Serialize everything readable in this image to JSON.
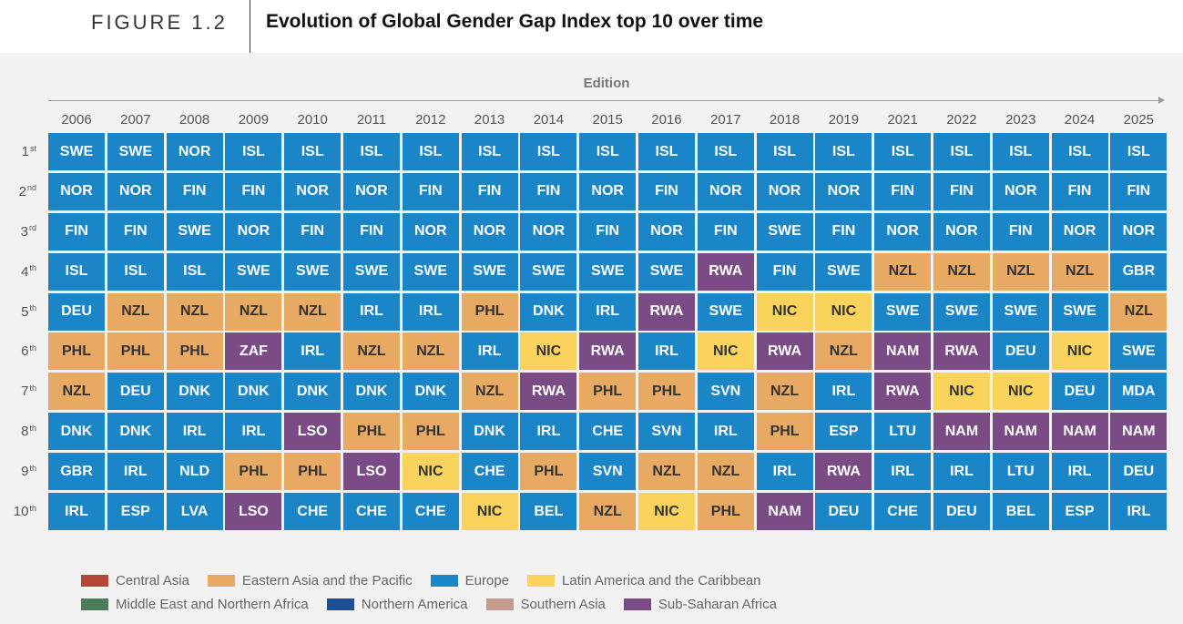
{
  "figure": {
    "label": "FIGURE 1.2",
    "title": "Evolution of Global Gender Gap Index top 10 over time"
  },
  "chart_data": {
    "type": "table",
    "xlabel": "Edition",
    "years": [
      "2006",
      "2007",
      "2008",
      "2009",
      "2010",
      "2011",
      "2012",
      "2013",
      "2014",
      "2015",
      "2016",
      "2017",
      "2018",
      "2019",
      "2021",
      "2022",
      "2023",
      "2024",
      "2025"
    ],
    "ranks": [
      {
        "num": "1",
        "suffix": "st"
      },
      {
        "num": "2",
        "suffix": "nd"
      },
      {
        "num": "3",
        "suffix": "rd"
      },
      {
        "num": "4",
        "suffix": "th"
      },
      {
        "num": "5",
        "suffix": "th"
      },
      {
        "num": "6",
        "suffix": "th"
      },
      {
        "num": "7",
        "suffix": "th"
      },
      {
        "num": "8",
        "suffix": "th"
      },
      {
        "num": "9",
        "suffix": "th"
      },
      {
        "num": "10",
        "suffix": "th"
      }
    ],
    "region_colors": {
      "central_asia": "#b5473a",
      "east_asia_pacific": "#e8a962",
      "europe": "#1a86c7",
      "latin_america": "#fad35c",
      "mena": "#4a7c59",
      "north_america": "#1d4f91",
      "south_asia": "#c49a8f",
      "ssa": "#7b4b85"
    },
    "cells": [
      [
        {
          "c": "SWE",
          "r": "europe"
        },
        {
          "c": "SWE",
          "r": "europe"
        },
        {
          "c": "NOR",
          "r": "europe"
        },
        {
          "c": "ISL",
          "r": "europe"
        },
        {
          "c": "ISL",
          "r": "europe"
        },
        {
          "c": "ISL",
          "r": "europe"
        },
        {
          "c": "ISL",
          "r": "europe"
        },
        {
          "c": "ISL",
          "r": "europe"
        },
        {
          "c": "ISL",
          "r": "europe"
        },
        {
          "c": "ISL",
          "r": "europe"
        },
        {
          "c": "ISL",
          "r": "europe"
        },
        {
          "c": "ISL",
          "r": "europe"
        },
        {
          "c": "ISL",
          "r": "europe"
        },
        {
          "c": "ISL",
          "r": "europe"
        },
        {
          "c": "ISL",
          "r": "europe"
        },
        {
          "c": "ISL",
          "r": "europe"
        },
        {
          "c": "ISL",
          "r": "europe"
        },
        {
          "c": "ISL",
          "r": "europe"
        },
        {
          "c": "ISL",
          "r": "europe"
        }
      ],
      [
        {
          "c": "NOR",
          "r": "europe"
        },
        {
          "c": "NOR",
          "r": "europe"
        },
        {
          "c": "FIN",
          "r": "europe"
        },
        {
          "c": "FIN",
          "r": "europe"
        },
        {
          "c": "NOR",
          "r": "europe"
        },
        {
          "c": "NOR",
          "r": "europe"
        },
        {
          "c": "FIN",
          "r": "europe"
        },
        {
          "c": "FIN",
          "r": "europe"
        },
        {
          "c": "FIN",
          "r": "europe"
        },
        {
          "c": "NOR",
          "r": "europe"
        },
        {
          "c": "FIN",
          "r": "europe"
        },
        {
          "c": "NOR",
          "r": "europe"
        },
        {
          "c": "NOR",
          "r": "europe"
        },
        {
          "c": "NOR",
          "r": "europe"
        },
        {
          "c": "FIN",
          "r": "europe"
        },
        {
          "c": "FIN",
          "r": "europe"
        },
        {
          "c": "NOR",
          "r": "europe"
        },
        {
          "c": "FIN",
          "r": "europe"
        },
        {
          "c": "FIN",
          "r": "europe"
        }
      ],
      [
        {
          "c": "FIN",
          "r": "europe"
        },
        {
          "c": "FIN",
          "r": "europe"
        },
        {
          "c": "SWE",
          "r": "europe"
        },
        {
          "c": "NOR",
          "r": "europe"
        },
        {
          "c": "FIN",
          "r": "europe"
        },
        {
          "c": "FIN",
          "r": "europe"
        },
        {
          "c": "NOR",
          "r": "europe"
        },
        {
          "c": "NOR",
          "r": "europe"
        },
        {
          "c": "NOR",
          "r": "europe"
        },
        {
          "c": "FIN",
          "r": "europe"
        },
        {
          "c": "NOR",
          "r": "europe"
        },
        {
          "c": "FIN",
          "r": "europe"
        },
        {
          "c": "SWE",
          "r": "europe"
        },
        {
          "c": "FIN",
          "r": "europe"
        },
        {
          "c": "NOR",
          "r": "europe"
        },
        {
          "c": "NOR",
          "r": "europe"
        },
        {
          "c": "FIN",
          "r": "europe"
        },
        {
          "c": "NOR",
          "r": "europe"
        },
        {
          "c": "NOR",
          "r": "europe"
        }
      ],
      [
        {
          "c": "ISL",
          "r": "europe"
        },
        {
          "c": "ISL",
          "r": "europe"
        },
        {
          "c": "ISL",
          "r": "europe"
        },
        {
          "c": "SWE",
          "r": "europe"
        },
        {
          "c": "SWE",
          "r": "europe"
        },
        {
          "c": "SWE",
          "r": "europe"
        },
        {
          "c": "SWE",
          "r": "europe"
        },
        {
          "c": "SWE",
          "r": "europe"
        },
        {
          "c": "SWE",
          "r": "europe"
        },
        {
          "c": "SWE",
          "r": "europe"
        },
        {
          "c": "SWE",
          "r": "europe"
        },
        {
          "c": "RWA",
          "r": "ssa"
        },
        {
          "c": "FIN",
          "r": "europe"
        },
        {
          "c": "SWE",
          "r": "europe"
        },
        {
          "c": "NZL",
          "r": "east_asia_pacific"
        },
        {
          "c": "NZL",
          "r": "east_asia_pacific"
        },
        {
          "c": "NZL",
          "r": "east_asia_pacific"
        },
        {
          "c": "NZL",
          "r": "east_asia_pacific"
        },
        {
          "c": "GBR",
          "r": "europe"
        }
      ],
      [
        {
          "c": "DEU",
          "r": "europe"
        },
        {
          "c": "NZL",
          "r": "east_asia_pacific"
        },
        {
          "c": "NZL",
          "r": "east_asia_pacific"
        },
        {
          "c": "NZL",
          "r": "east_asia_pacific"
        },
        {
          "c": "NZL",
          "r": "east_asia_pacific"
        },
        {
          "c": "IRL",
          "r": "europe"
        },
        {
          "c": "IRL",
          "r": "europe"
        },
        {
          "c": "PHL",
          "r": "east_asia_pacific"
        },
        {
          "c": "DNK",
          "r": "europe"
        },
        {
          "c": "IRL",
          "r": "europe"
        },
        {
          "c": "RWA",
          "r": "ssa"
        },
        {
          "c": "SWE",
          "r": "europe"
        },
        {
          "c": "NIC",
          "r": "latin_america"
        },
        {
          "c": "NIC",
          "r": "latin_america"
        },
        {
          "c": "SWE",
          "r": "europe"
        },
        {
          "c": "SWE",
          "r": "europe"
        },
        {
          "c": "SWE",
          "r": "europe"
        },
        {
          "c": "SWE",
          "r": "europe"
        },
        {
          "c": "NZL",
          "r": "east_asia_pacific"
        }
      ],
      [
        {
          "c": "PHL",
          "r": "east_asia_pacific"
        },
        {
          "c": "PHL",
          "r": "east_asia_pacific"
        },
        {
          "c": "PHL",
          "r": "east_asia_pacific"
        },
        {
          "c": "ZAF",
          "r": "ssa"
        },
        {
          "c": "IRL",
          "r": "europe"
        },
        {
          "c": "NZL",
          "r": "east_asia_pacific"
        },
        {
          "c": "NZL",
          "r": "east_asia_pacific"
        },
        {
          "c": "IRL",
          "r": "europe"
        },
        {
          "c": "NIC",
          "r": "latin_america"
        },
        {
          "c": "RWA",
          "r": "ssa"
        },
        {
          "c": "IRL",
          "r": "europe"
        },
        {
          "c": "NIC",
          "r": "latin_america"
        },
        {
          "c": "RWA",
          "r": "ssa"
        },
        {
          "c": "NZL",
          "r": "east_asia_pacific"
        },
        {
          "c": "NAM",
          "r": "ssa"
        },
        {
          "c": "RWA",
          "r": "ssa"
        },
        {
          "c": "DEU",
          "r": "europe"
        },
        {
          "c": "NIC",
          "r": "latin_america"
        },
        {
          "c": "SWE",
          "r": "europe"
        }
      ],
      [
        {
          "c": "NZL",
          "r": "east_asia_pacific"
        },
        {
          "c": "DEU",
          "r": "europe"
        },
        {
          "c": "DNK",
          "r": "europe"
        },
        {
          "c": "DNK",
          "r": "europe"
        },
        {
          "c": "DNK",
          "r": "europe"
        },
        {
          "c": "DNK",
          "r": "europe"
        },
        {
          "c": "DNK",
          "r": "europe"
        },
        {
          "c": "NZL",
          "r": "east_asia_pacific"
        },
        {
          "c": "RWA",
          "r": "ssa"
        },
        {
          "c": "PHL",
          "r": "east_asia_pacific"
        },
        {
          "c": "PHL",
          "r": "east_asia_pacific"
        },
        {
          "c": "SVN",
          "r": "europe"
        },
        {
          "c": "NZL",
          "r": "east_asia_pacific"
        },
        {
          "c": "IRL",
          "r": "europe"
        },
        {
          "c": "RWA",
          "r": "ssa"
        },
        {
          "c": "NIC",
          "r": "latin_america"
        },
        {
          "c": "NIC",
          "r": "latin_america"
        },
        {
          "c": "DEU",
          "r": "europe"
        },
        {
          "c": "MDA",
          "r": "europe"
        }
      ],
      [
        {
          "c": "DNK",
          "r": "europe"
        },
        {
          "c": "DNK",
          "r": "europe"
        },
        {
          "c": "IRL",
          "r": "europe"
        },
        {
          "c": "IRL",
          "r": "europe"
        },
        {
          "c": "LSO",
          "r": "ssa"
        },
        {
          "c": "PHL",
          "r": "east_asia_pacific"
        },
        {
          "c": "PHL",
          "r": "east_asia_pacific"
        },
        {
          "c": "DNK",
          "r": "europe"
        },
        {
          "c": "IRL",
          "r": "europe"
        },
        {
          "c": "CHE",
          "r": "europe"
        },
        {
          "c": "SVN",
          "r": "europe"
        },
        {
          "c": "IRL",
          "r": "europe"
        },
        {
          "c": "PHL",
          "r": "east_asia_pacific"
        },
        {
          "c": "ESP",
          "r": "europe"
        },
        {
          "c": "LTU",
          "r": "europe"
        },
        {
          "c": "NAM",
          "r": "ssa"
        },
        {
          "c": "NAM",
          "r": "ssa"
        },
        {
          "c": "NAM",
          "r": "ssa"
        },
        {
          "c": "NAM",
          "r": "ssa"
        }
      ],
      [
        {
          "c": "GBR",
          "r": "europe"
        },
        {
          "c": "IRL",
          "r": "europe"
        },
        {
          "c": "NLD",
          "r": "europe"
        },
        {
          "c": "PHL",
          "r": "east_asia_pacific"
        },
        {
          "c": "PHL",
          "r": "east_asia_pacific"
        },
        {
          "c": "LSO",
          "r": "ssa"
        },
        {
          "c": "NIC",
          "r": "latin_america"
        },
        {
          "c": "CHE",
          "r": "europe"
        },
        {
          "c": "PHL",
          "r": "east_asia_pacific"
        },
        {
          "c": "SVN",
          "r": "europe"
        },
        {
          "c": "NZL",
          "r": "east_asia_pacific"
        },
        {
          "c": "NZL",
          "r": "east_asia_pacific"
        },
        {
          "c": "IRL",
          "r": "europe"
        },
        {
          "c": "RWA",
          "r": "ssa"
        },
        {
          "c": "IRL",
          "r": "europe"
        },
        {
          "c": "IRL",
          "r": "europe"
        },
        {
          "c": "LTU",
          "r": "europe"
        },
        {
          "c": "IRL",
          "r": "europe"
        },
        {
          "c": "DEU",
          "r": "europe"
        }
      ],
      [
        {
          "c": "IRL",
          "r": "europe"
        },
        {
          "c": "ESP",
          "r": "europe"
        },
        {
          "c": "LVA",
          "r": "europe"
        },
        {
          "c": "LSO",
          "r": "ssa"
        },
        {
          "c": "CHE",
          "r": "europe"
        },
        {
          "c": "CHE",
          "r": "europe"
        },
        {
          "c": "CHE",
          "r": "europe"
        },
        {
          "c": "NIC",
          "r": "latin_america"
        },
        {
          "c": "BEL",
          "r": "europe"
        },
        {
          "c": "NZL",
          "r": "east_asia_pacific"
        },
        {
          "c": "NIC",
          "r": "latin_america"
        },
        {
          "c": "PHL",
          "r": "east_asia_pacific"
        },
        {
          "c": "NAM",
          "r": "ssa"
        },
        {
          "c": "DEU",
          "r": "europe"
        },
        {
          "c": "CHE",
          "r": "europe"
        },
        {
          "c": "DEU",
          "r": "europe"
        },
        {
          "c": "BEL",
          "r": "europe"
        },
        {
          "c": "ESP",
          "r": "europe"
        },
        {
          "c": "IRL",
          "r": "europe"
        }
      ]
    ],
    "legend": [
      [
        {
          "key": "central_asia",
          "label": "Central Asia"
        },
        {
          "key": "east_asia_pacific",
          "label": "Eastern Asia and the Pacific"
        },
        {
          "key": "europe",
          "label": "Europe"
        },
        {
          "key": "latin_america",
          "label": "Latin America and the Caribbean"
        }
      ],
      [
        {
          "key": "mena",
          "label": "Middle East and Northern Africa"
        },
        {
          "key": "north_america",
          "label": "Northern America"
        },
        {
          "key": "south_asia",
          "label": "Southern Asia"
        },
        {
          "key": "ssa",
          "label": "Sub-Saharan Africa"
        }
      ]
    ]
  }
}
